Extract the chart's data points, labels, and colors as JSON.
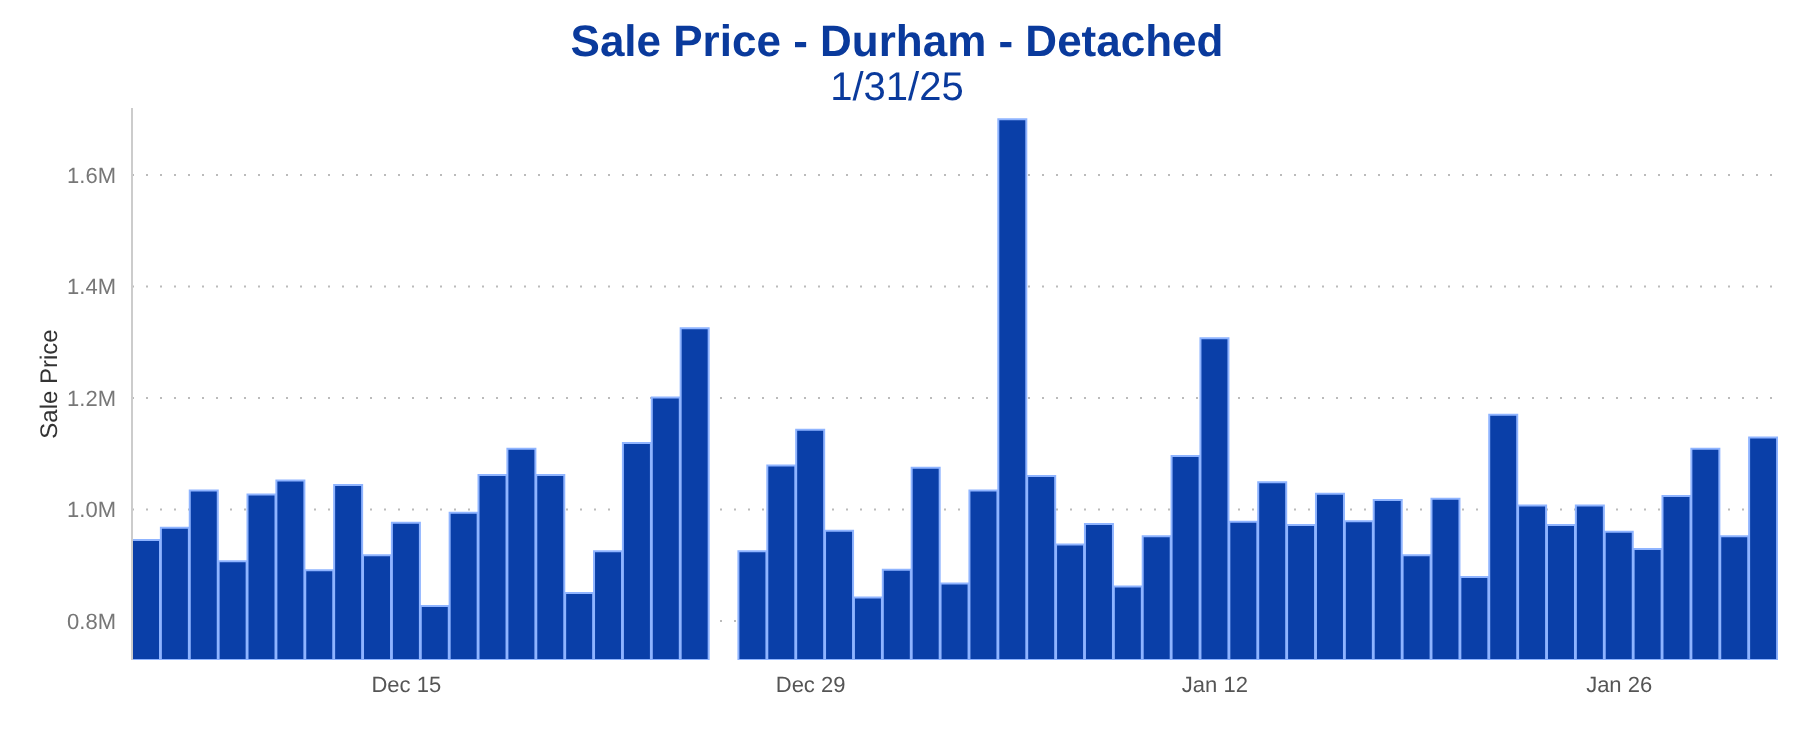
{
  "chart_data": {
    "type": "bar",
    "title": "Sale Price - Durham - Detached",
    "subtitle": "1/31/25",
    "ylabel": "Sale Price",
    "categories": [
      null,
      null,
      null,
      null,
      null,
      null,
      null,
      null,
      null,
      "Dec 15",
      null,
      null,
      null,
      null,
      null,
      null,
      null,
      null,
      null,
      null,
      null,
      null,
      null,
      "Dec 29",
      null,
      null,
      null,
      null,
      null,
      null,
      null,
      null,
      null,
      null,
      null,
      null,
      null,
      "Jan 12",
      null,
      null,
      null,
      null,
      null,
      null,
      null,
      null,
      null,
      null,
      null,
      null,
      null,
      "Jan 26",
      null,
      null,
      null,
      null,
      null
    ],
    "values": [
      0.945,
      0.967,
      1.034,
      0.907,
      1.027,
      1.052,
      0.891,
      1.044,
      0.918,
      0.976,
      0.827,
      0.994,
      1.062,
      1.109,
      1.062,
      0.85,
      0.925,
      1.119,
      1.201,
      1.325,
      null,
      0.925,
      1.079,
      1.143,
      0.962,
      0.842,
      0.892,
      1.075,
      0.867,
      1.034,
      1.7,
      1.06,
      0.937,
      0.974,
      0.862,
      0.952,
      1.096,
      1.307,
      0.978,
      1.049,
      0.972,
      1.028,
      0.979,
      1.017,
      0.918,
      1.019,
      0.879,
      1.17,
      1.007,
      0.972,
      1.007,
      0.96,
      0.929,
      1.024,
      1.109,
      0.952,
      1.129
    ],
    "color": "#0a3fa8",
    "ylim": [
      0.73,
      1.72
    ],
    "yticks": [
      {
        "value": 0.8,
        "label": "0.8M"
      },
      {
        "value": 1.0,
        "label": "1.0M"
      },
      {
        "value": 1.2,
        "label": "1.2M"
      },
      {
        "value": 1.4,
        "label": "1.4M"
      },
      {
        "value": 1.6,
        "label": "1.6M"
      }
    ],
    "grid": "y"
  }
}
